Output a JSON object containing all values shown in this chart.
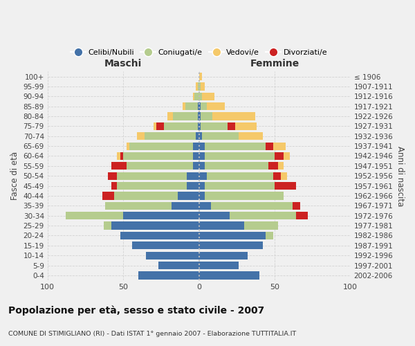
{
  "age_groups": [
    "0-4",
    "5-9",
    "10-14",
    "15-19",
    "20-24",
    "25-29",
    "30-34",
    "35-39",
    "40-44",
    "45-49",
    "50-54",
    "55-59",
    "60-64",
    "65-69",
    "70-74",
    "75-79",
    "80-84",
    "85-89",
    "90-94",
    "95-99",
    "100+"
  ],
  "birth_years": [
    "2002-2006",
    "1997-2001",
    "1992-1996",
    "1987-1991",
    "1982-1986",
    "1977-1981",
    "1972-1976",
    "1967-1971",
    "1962-1966",
    "1957-1961",
    "1952-1956",
    "1947-1951",
    "1942-1946",
    "1937-1941",
    "1932-1936",
    "1927-1931",
    "1922-1926",
    "1917-1921",
    "1912-1916",
    "1907-1911",
    "≤ 1906"
  ],
  "maschi": {
    "celibi": [
      40,
      27,
      35,
      44,
      52,
      58,
      50,
      18,
      14,
      8,
      8,
      4,
      4,
      4,
      2,
      1,
      1,
      1,
      0,
      0,
      0
    ],
    "coniugati": [
      0,
      0,
      0,
      0,
      0,
      5,
      38,
      44,
      42,
      46,
      46,
      44,
      46,
      42,
      34,
      22,
      16,
      8,
      3,
      1,
      0
    ],
    "vedovi": [
      0,
      0,
      0,
      0,
      0,
      0,
      0,
      0,
      0,
      0,
      0,
      0,
      2,
      2,
      5,
      2,
      4,
      2,
      1,
      1,
      0
    ],
    "divorziati": [
      0,
      0,
      0,
      0,
      0,
      0,
      0,
      0,
      8,
      4,
      6,
      10,
      2,
      0,
      0,
      5,
      0,
      0,
      0,
      0,
      0
    ]
  },
  "femmine": {
    "nubili": [
      40,
      26,
      32,
      42,
      44,
      30,
      20,
      8,
      4,
      4,
      5,
      4,
      4,
      4,
      2,
      1,
      1,
      1,
      0,
      0,
      0
    ],
    "coniugate": [
      0,
      0,
      0,
      0,
      5,
      22,
      44,
      54,
      52,
      46,
      44,
      42,
      46,
      40,
      24,
      18,
      8,
      4,
      2,
      1,
      0
    ],
    "vedove": [
      0,
      0,
      0,
      0,
      0,
      0,
      0,
      0,
      0,
      0,
      4,
      4,
      4,
      8,
      16,
      14,
      28,
      12,
      8,
      3,
      2
    ],
    "divorziate": [
      0,
      0,
      0,
      0,
      0,
      0,
      8,
      5,
      0,
      14,
      5,
      6,
      6,
      5,
      0,
      5,
      0,
      0,
      0,
      0,
      0
    ]
  },
  "colors": {
    "celibi_nubili": "#4472a8",
    "coniugati": "#b5cc8e",
    "vedovi": "#f5c96a",
    "divorziati": "#cc2222"
  },
  "title": "Popolazione per età, sesso e stato civile - 2007",
  "subtitle": "COMUNE DI STIMIGLIANO (RI) - Dati ISTAT 1° gennaio 2007 - Elaborazione TUTTITALIA.IT",
  "xlabel_left": "Maschi",
  "xlabel_right": "Femmine",
  "ylabel_left": "Fasce di età",
  "ylabel_right": "Anni di nascita",
  "xlim": 100,
  "bg_color": "#f0f0f0",
  "grid_color": "#cccccc"
}
